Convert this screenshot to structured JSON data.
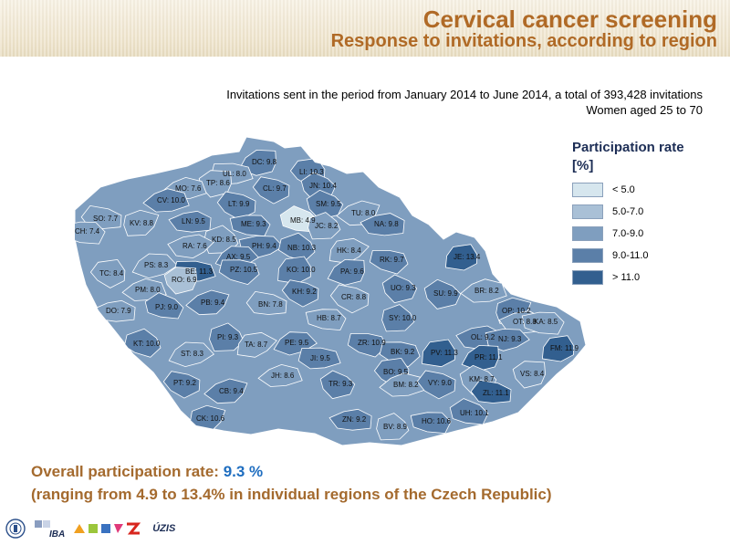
{
  "header": {
    "title": "Cervical cancer screening",
    "subtitle": "Response to invitations, according to region"
  },
  "info": {
    "line1": "Invitations sent in the period from January 2014 to June 2014, a total of 393,428 invitations",
    "line2": "Women aged 25 to 70"
  },
  "legend": {
    "title_line1": "Participation rate",
    "title_line2": "[%]",
    "items": [
      {
        "label": "< 5.0",
        "color": "#d6e6ee"
      },
      {
        "label": "5.0-7.0",
        "color": "#a9c0d6"
      },
      {
        "label": "7.0-9.0",
        "color": "#7f9ebf"
      },
      {
        "label": "9.0-11.0",
        "color": "#5b7fa8"
      },
      {
        "label": "> 11.0",
        "color": "#325f8f"
      }
    ]
  },
  "regions": [
    {
      "label": "DC: 9.8"
    },
    {
      "label": "UL: 8.0"
    },
    {
      "label": "LI: 10.3"
    },
    {
      "label": "TP: 8.6"
    },
    {
      "label": "MO: 7.6"
    },
    {
      "label": "CL: 9.7"
    },
    {
      "label": "JN: 10.4"
    },
    {
      "label": "CV: 10.0"
    },
    {
      "label": "LT: 9.9"
    },
    {
      "label": "SM: 9.5"
    },
    {
      "label": "TU: 8.0"
    },
    {
      "label": "SO: 7.7"
    },
    {
      "label": "MB: 4.9"
    },
    {
      "label": "KV: 8.8"
    },
    {
      "label": "LN: 9.5"
    },
    {
      "label": "ME: 9.3"
    },
    {
      "label": "JC: 8.2"
    },
    {
      "label": "NA: 9.8"
    },
    {
      "label": "CH: 7.4"
    },
    {
      "label": "KD: 8.5"
    },
    {
      "label": "RA: 7.6"
    },
    {
      "label": "PH: 9.4"
    },
    {
      "label": "NB: 10.3"
    },
    {
      "label": "HK: 8.4"
    },
    {
      "label": "AX: 9.5"
    },
    {
      "label": "RK: 9.7"
    },
    {
      "label": "JE: 13.4"
    },
    {
      "label": "PS: 8.3"
    },
    {
      "label": "PZ: 10.5"
    },
    {
      "label": "KO: 10.0"
    },
    {
      "label": "PA: 9.6"
    },
    {
      "label": "BE: 11.3"
    },
    {
      "label": "TC: 8.4"
    },
    {
      "label": "RO: 6.9"
    },
    {
      "label": "PM: 8.0"
    },
    {
      "label": "KH: 9.2"
    },
    {
      "label": "UO: 9.3"
    },
    {
      "label": "BR: 8.2"
    },
    {
      "label": "CR: 8.8"
    },
    {
      "label": "SU: 9.9"
    },
    {
      "label": "PB: 9.4"
    },
    {
      "label": "BN: 7.8"
    },
    {
      "label": "PJ: 9.0"
    },
    {
      "label": "OP: 10.2"
    },
    {
      "label": "DO: 7.9"
    },
    {
      "label": "HB: 8.7"
    },
    {
      "label": "SY: 10.0"
    },
    {
      "label": "OT: 8.8"
    },
    {
      "label": "KA: 8.5"
    },
    {
      "label": "PI: 9.3"
    },
    {
      "label": "OL: 9.2"
    },
    {
      "label": "NJ: 9.3"
    },
    {
      "label": "KT: 10.0"
    },
    {
      "label": "TA: 8.7"
    },
    {
      "label": "PE: 9.5"
    },
    {
      "label": "ZR: 10.9"
    },
    {
      "label": "FM: 11.9"
    },
    {
      "label": "ST: 8.3"
    },
    {
      "label": "BK: 9.2"
    },
    {
      "label": "PV: 11.3"
    },
    {
      "label": "PR: 11.1"
    },
    {
      "label": "JI: 9.5"
    },
    {
      "label": "BO: 9.5"
    },
    {
      "label": "VS: 8.4"
    },
    {
      "label": "JH: 8.6"
    },
    {
      "label": "PT: 9.2"
    },
    {
      "label": "TR: 9.3"
    },
    {
      "label": "BM: 8.2"
    },
    {
      "label": "VY: 9.0"
    },
    {
      "label": "KM: 8.7"
    },
    {
      "label": "CB: 9.4"
    },
    {
      "label": "ZL: 11.1"
    },
    {
      "label": "UH: 10.1"
    },
    {
      "label": "CK: 10.6"
    },
    {
      "label": "ZN: 9.2"
    },
    {
      "label": "HO: 10.6"
    },
    {
      "label": "BV: 8.9"
    }
  ],
  "summary": {
    "prefix": "Overall participation rate: ",
    "value": "9.3 %",
    "range": "(ranging from 4.9 to 13.4% in individual regions of the Czech Republic)"
  },
  "logos": {
    "iba": "IBA",
    "uzis": "ÚZIS"
  }
}
